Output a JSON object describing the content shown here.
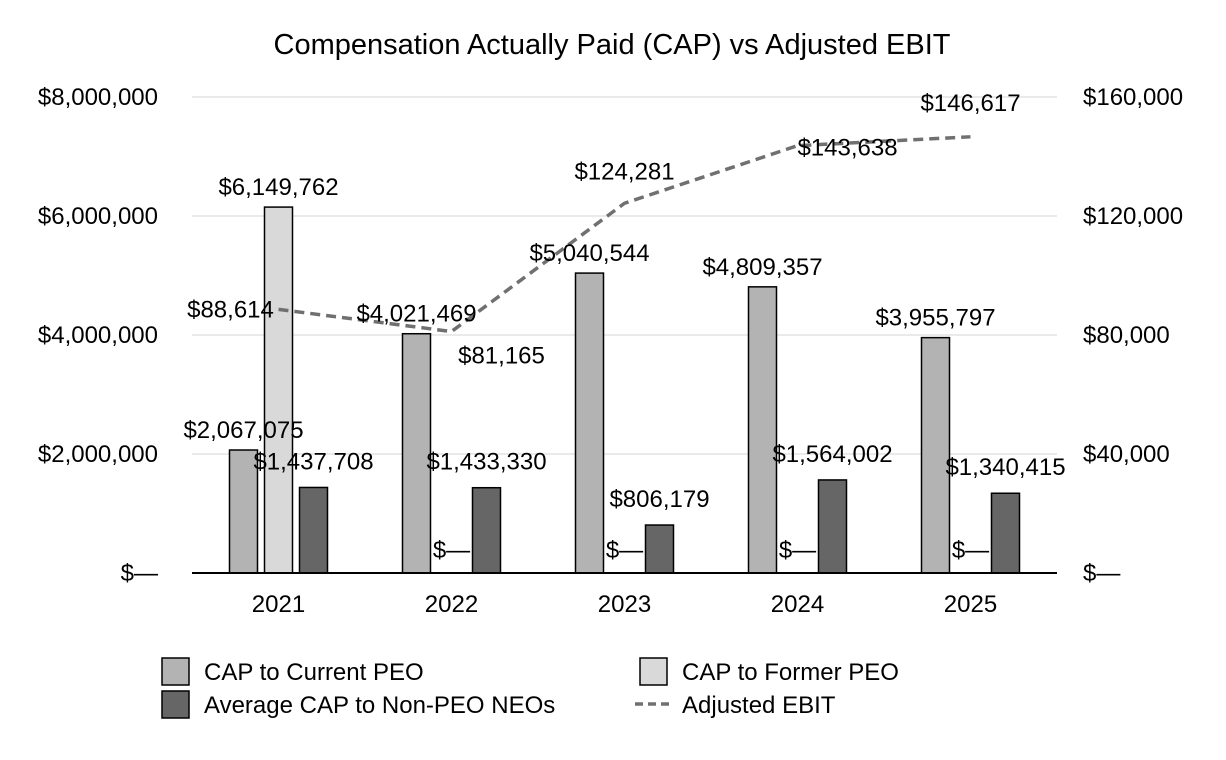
{
  "chart_data": {
    "type": "bar",
    "title": "Compensation Actually Paid (CAP) vs Adjusted EBIT",
    "categories": [
      "2021",
      "2022",
      "2023",
      "2024",
      "2025"
    ],
    "y_left": {
      "ylim": [
        0,
        8000000
      ],
      "ticks": [
        0,
        2000000,
        4000000,
        6000000,
        8000000
      ],
      "tick_labels": [
        "$—",
        "$2,000,000",
        "$4,000,000",
        "$6,000,000",
        "$8,000,000"
      ]
    },
    "y_right": {
      "ylim": [
        0,
        160000
      ],
      "ticks": [
        0,
        40000,
        80000,
        120000,
        160000
      ],
      "tick_labels": [
        "$—",
        "$40,000",
        "$80,000",
        "$120,000",
        "$160,000"
      ]
    },
    "series": [
      {
        "name": "CAP to Current PEO",
        "type": "bar",
        "axis": "left",
        "color": "#b3b3b3",
        "values": [
          2067075,
          4021469,
          5040544,
          4809357,
          3955797
        ],
        "labels": [
          "$2,067,075",
          "$4,021,469",
          "$5,040,544",
          "$4,809,357",
          "$3,955,797"
        ]
      },
      {
        "name": "CAP to Former PEO",
        "type": "bar",
        "axis": "left",
        "color": "#d9d9d9",
        "values": [
          6149762,
          0,
          0,
          0,
          0
        ],
        "labels": [
          "$6,149,762",
          "$—",
          "$—",
          "$—",
          "$—"
        ]
      },
      {
        "name": "Average CAP to Non-PEO NEOs",
        "type": "bar",
        "axis": "left",
        "color": "#666666",
        "values": [
          1437708,
          1433330,
          806179,
          1564002,
          1340415
        ],
        "labels": [
          "$1,437,708",
          "$1,433,330",
          "$806,179",
          "$1,564,002",
          "$1,340,415"
        ]
      },
      {
        "name": "Adjusted EBIT",
        "type": "line",
        "axis": "right",
        "color": "#707070",
        "dash": "dashed",
        "values": [
          88614,
          81165,
          124281,
          143638,
          146617
        ],
        "labels": [
          "$88,614",
          "$81,165",
          "$124,281",
          "$143,638",
          "$146,617"
        ]
      }
    ],
    "legend": {
      "placement": "bottom",
      "entries": [
        "CAP to Current PEO",
        "CAP to Former PEO",
        "Average CAP to Non-PEO NEOs",
        "Adjusted EBIT"
      ]
    }
  }
}
